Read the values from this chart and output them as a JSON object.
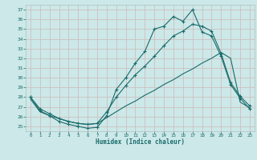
{
  "xlabel": "Humidex (Indice chaleur)",
  "bg_color": "#cce8e8",
  "grid_color": "#c8d8d8",
  "line_color": "#1a6b6b",
  "xlim": [
    -0.5,
    23.5
  ],
  "ylim": [
    24.5,
    37.5
  ],
  "xticks": [
    0,
    1,
    2,
    3,
    4,
    5,
    6,
    7,
    8,
    9,
    10,
    11,
    12,
    13,
    14,
    15,
    16,
    17,
    18,
    19,
    20,
    21,
    22,
    23
  ],
  "yticks": [
    25,
    26,
    27,
    28,
    29,
    30,
    31,
    32,
    33,
    34,
    35,
    36,
    37
  ],
  "line1_x": [
    0,
    1,
    2,
    3,
    4,
    5,
    6,
    7,
    8,
    9,
    10,
    11,
    12,
    13,
    14,
    15,
    16,
    17,
    18,
    19,
    20,
    21,
    22,
    23
  ],
  "line1_y": [
    28.0,
    26.6,
    26.1,
    25.5,
    25.2,
    25.0,
    24.8,
    24.9,
    26.1,
    28.8,
    30.0,
    31.5,
    32.7,
    35.0,
    35.3,
    36.3,
    35.8,
    37.0,
    34.7,
    34.3,
    32.2,
    29.3,
    27.9,
    26.8
  ],
  "line2_x": [
    0,
    1,
    2,
    3,
    4,
    5,
    6,
    7,
    8,
    9,
    10,
    11,
    12,
    13,
    14,
    15,
    16,
    17,
    18,
    19,
    20,
    21,
    22,
    23
  ],
  "line2_y": [
    28.0,
    26.8,
    26.3,
    25.8,
    25.5,
    25.3,
    25.2,
    25.3,
    26.5,
    28.0,
    29.2,
    30.3,
    31.2,
    32.2,
    33.3,
    34.3,
    34.8,
    35.5,
    35.3,
    34.8,
    32.5,
    29.5,
    28.1,
    27.1
  ],
  "line3_x": [
    0,
    1,
    2,
    3,
    4,
    5,
    6,
    7,
    8,
    9,
    10,
    11,
    12,
    13,
    14,
    15,
    16,
    17,
    18,
    19,
    20,
    21,
    22,
    23
  ],
  "line3_y": [
    27.8,
    26.5,
    26.1,
    25.8,
    25.5,
    25.3,
    25.2,
    25.3,
    25.9,
    26.5,
    27.1,
    27.6,
    28.2,
    28.7,
    29.3,
    29.8,
    30.4,
    30.9,
    31.5,
    32.0,
    32.6,
    32.0,
    27.5,
    26.9
  ]
}
